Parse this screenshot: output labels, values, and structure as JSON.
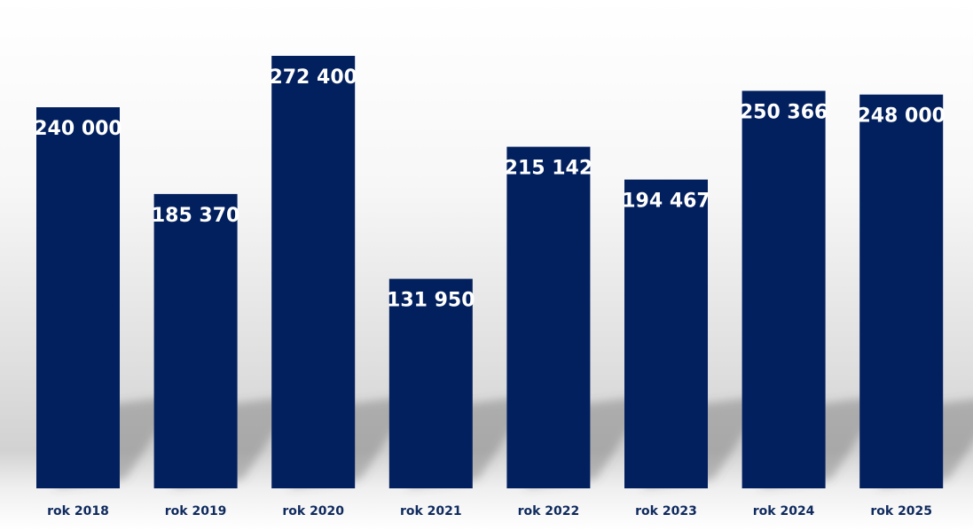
{
  "chart_data": {
    "type": "bar",
    "categories": [
      "rok 2018",
      "rok 2019",
      "rok 2020",
      "rok 2021",
      "rok 2022",
      "rok 2023",
      "rok 2024",
      "rok 2025"
    ],
    "values": [
      240000,
      185370,
      272400,
      131950,
      215142,
      194467,
      250366,
      248000
    ],
    "data_labels": [
      "240 000",
      "185 370",
      "272 400",
      "131 950",
      "215 142",
      "194 467",
      "250 366",
      "248 000"
    ],
    "title": "",
    "xlabel": "",
    "ylabel": "",
    "ylim": [
      0,
      272400
    ],
    "grid": false,
    "legend": "none",
    "colors": {
      "bar": "#03205e",
      "value_label": "#ffffff",
      "category_label": "#0f2a5e"
    }
  }
}
